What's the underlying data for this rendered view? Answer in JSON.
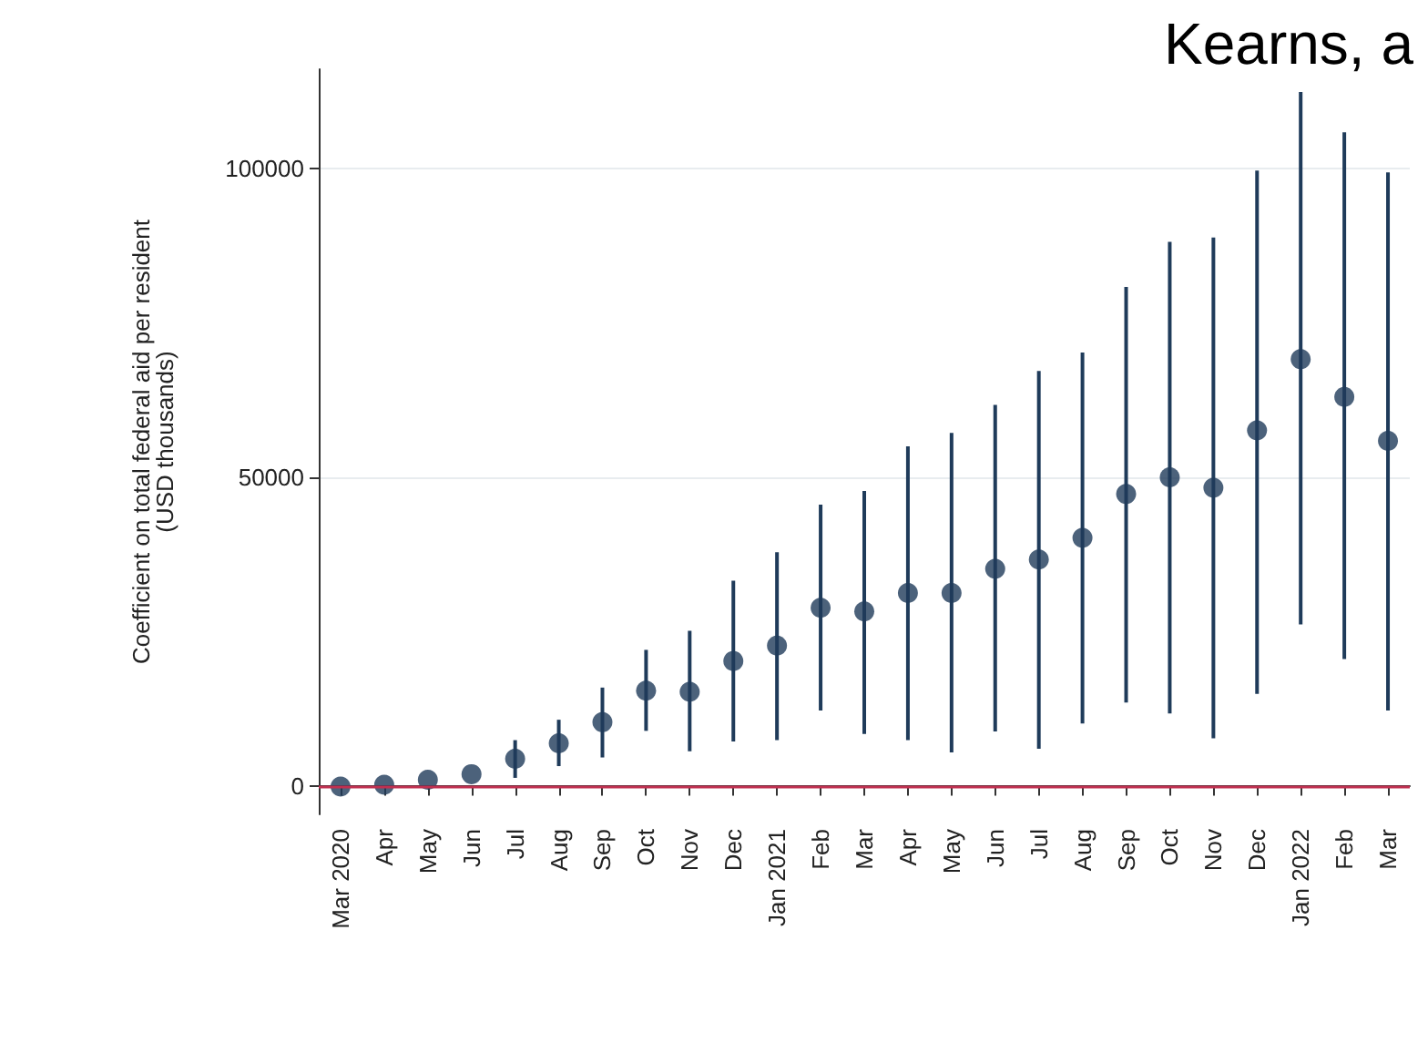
{
  "chart_data": {
    "type": "scatter",
    "ylabel": "Coefficient on total federal aid per resident\n(USD thousands)",
    "annotations": [
      "Kearns, a"
    ],
    "categories": [
      "Mar 2020",
      "Apr",
      "May",
      "Jun",
      "Jul",
      "Aug",
      "Sep",
      "Oct",
      "Nov",
      "Dec",
      "Jan 2021",
      "Feb",
      "Mar",
      "Apr",
      "May",
      "Jun",
      "Jul",
      "Aug",
      "Sep",
      "Oct",
      "Nov",
      "Dec",
      "Jan 2022",
      "Feb",
      "Mar"
    ],
    "series": [
      {
        "color": "#1f3b5a",
        "values": [
          0,
          300,
          1100,
          2000,
          4500,
          7000,
          10400,
          15500,
          15300,
          20300,
          22800,
          28900,
          28300,
          31300,
          31300,
          35200,
          36700,
          40200,
          47300,
          50000,
          48300,
          57600,
          69100,
          63000,
          55900
        ],
        "errors": [
          null,
          null,
          null,
          null,
          [
            1400,
            7500
          ],
          [
            3300,
            10800
          ],
          [
            4700,
            16000
          ],
          [
            9000,
            22100
          ],
          [
            5700,
            25200
          ],
          [
            7300,
            33300
          ],
          [
            7500,
            37900
          ],
          [
            12300,
            45600
          ],
          [
            8500,
            47800
          ],
          [
            7500,
            55000
          ],
          [
            5500,
            57200
          ],
          [
            8900,
            61700
          ],
          [
            6100,
            67200
          ],
          [
            10200,
            70200
          ],
          [
            13600,
            80800
          ],
          [
            11800,
            88100
          ],
          [
            7800,
            88800
          ],
          [
            15000,
            99600
          ],
          [
            26200,
            112300
          ],
          [
            20600,
            105800
          ],
          [
            12300,
            99300
          ]
        ]
      }
    ],
    "ylim": [
      -4500,
      116000
    ],
    "yticks": [
      0,
      50000,
      100000
    ],
    "grid": "y",
    "marker": "circle",
    "ref_lines": [
      {
        "axis": "y",
        "value": 0,
        "color": "#c03050"
      }
    ]
  }
}
